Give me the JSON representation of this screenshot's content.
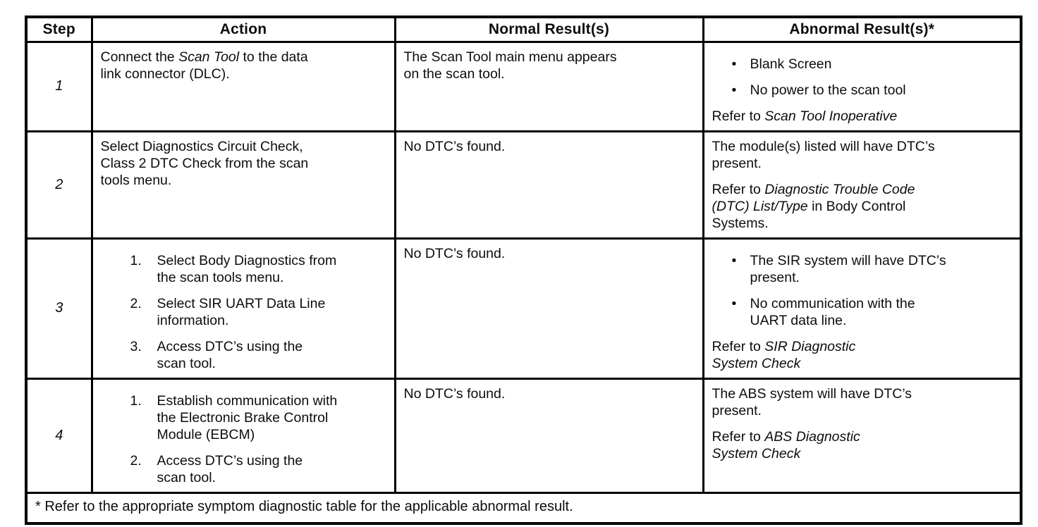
{
  "colors": {
    "ink": "#0d0d0d",
    "paper": "#ffffff",
    "line": "#000000"
  },
  "table": {
    "columns": [
      "Step",
      "Action",
      "Normal Result(s)",
      "Abnormal Result(s)*"
    ],
    "rows": [
      {
        "step": "1",
        "action": [
          {
            "type": "p",
            "parts": [
              {
                "t": "Connect the "
              },
              {
                "t": "Scan Tool",
                "i": true
              },
              {
                "t": " to the data\nlink connector (DLC)."
              }
            ]
          }
        ],
        "normal": [
          {
            "type": "p",
            "parts": [
              {
                "t": "The Scan Tool main menu appears\non the scan tool."
              }
            ]
          }
        ],
        "abnormal": [
          {
            "type": "bullet",
            "parts": [
              {
                "t": "Blank Screen"
              }
            ]
          },
          {
            "type": "bullet",
            "parts": [
              {
                "t": "No power to the scan tool"
              }
            ]
          },
          {
            "type": "p",
            "parts": [
              {
                "t": "Refer to "
              },
              {
                "t": "Scan Tool Inoperative",
                "i": true
              }
            ]
          }
        ]
      },
      {
        "step": "2",
        "action": [
          {
            "type": "p",
            "parts": [
              {
                "t": "Select Diagnostics Circuit Check,\nClass 2 DTC Check from the scan\ntools menu."
              }
            ]
          }
        ],
        "normal": [
          {
            "type": "p",
            "parts": [
              {
                "t": "No DTC’s found."
              }
            ]
          }
        ],
        "abnormal": [
          {
            "type": "p",
            "parts": [
              {
                "t": "The module(s) listed will have DTC’s\npresent."
              }
            ]
          },
          {
            "type": "p",
            "parts": [
              {
                "t": "Refer to "
              },
              {
                "t": "Diagnostic Trouble Code\n(DTC) List/Type",
                "i": true
              },
              {
                "t": " in Body Control\nSystems."
              }
            ]
          }
        ]
      },
      {
        "step": "3",
        "action": [
          {
            "type": "num",
            "n": "1.",
            "parts": [
              {
                "t": "Select Body Diagnostics from\nthe scan tools menu."
              }
            ]
          },
          {
            "type": "num",
            "n": "2.",
            "parts": [
              {
                "t": "Select SIR UART Data Line\ninformation."
              }
            ]
          },
          {
            "type": "num",
            "n": "3.",
            "parts": [
              {
                "t": "Access DTC’s using the\nscan tool."
              }
            ]
          }
        ],
        "normal": [
          {
            "type": "p",
            "parts": [
              {
                "t": "No DTC’s found."
              }
            ]
          }
        ],
        "abnormal": [
          {
            "type": "bullet",
            "parts": [
              {
                "t": "The SIR system will have DTC’s\npresent."
              }
            ]
          },
          {
            "type": "bullet",
            "parts": [
              {
                "t": "No communication with the\nUART data line."
              }
            ]
          },
          {
            "type": "p",
            "parts": [
              {
                "t": "Refer to "
              },
              {
                "t": "SIR Diagnostic\nSystem Check",
                "i": true
              }
            ]
          }
        ]
      },
      {
        "step": "4",
        "action": [
          {
            "type": "num",
            "n": "1.",
            "parts": [
              {
                "t": "Establish communication with\nthe Electronic Brake Control\nModule (EBCM)"
              }
            ]
          },
          {
            "type": "num",
            "n": "2.",
            "parts": [
              {
                "t": "Access DTC’s using the\nscan tool."
              }
            ]
          }
        ],
        "normal": [
          {
            "type": "p",
            "parts": [
              {
                "t": "No DTC’s found."
              }
            ]
          }
        ],
        "abnormal": [
          {
            "type": "p",
            "parts": [
              {
                "t": "The ABS system will have DTC’s\npresent."
              }
            ]
          },
          {
            "type": "p",
            "parts": [
              {
                "t": "Refer to "
              },
              {
                "t": "ABS Diagnostic\nSystem Check",
                "i": true
              }
            ]
          }
        ]
      }
    ],
    "footnote": "* Refer to the appropriate symptom diagnostic table for the applicable abnormal result."
  }
}
